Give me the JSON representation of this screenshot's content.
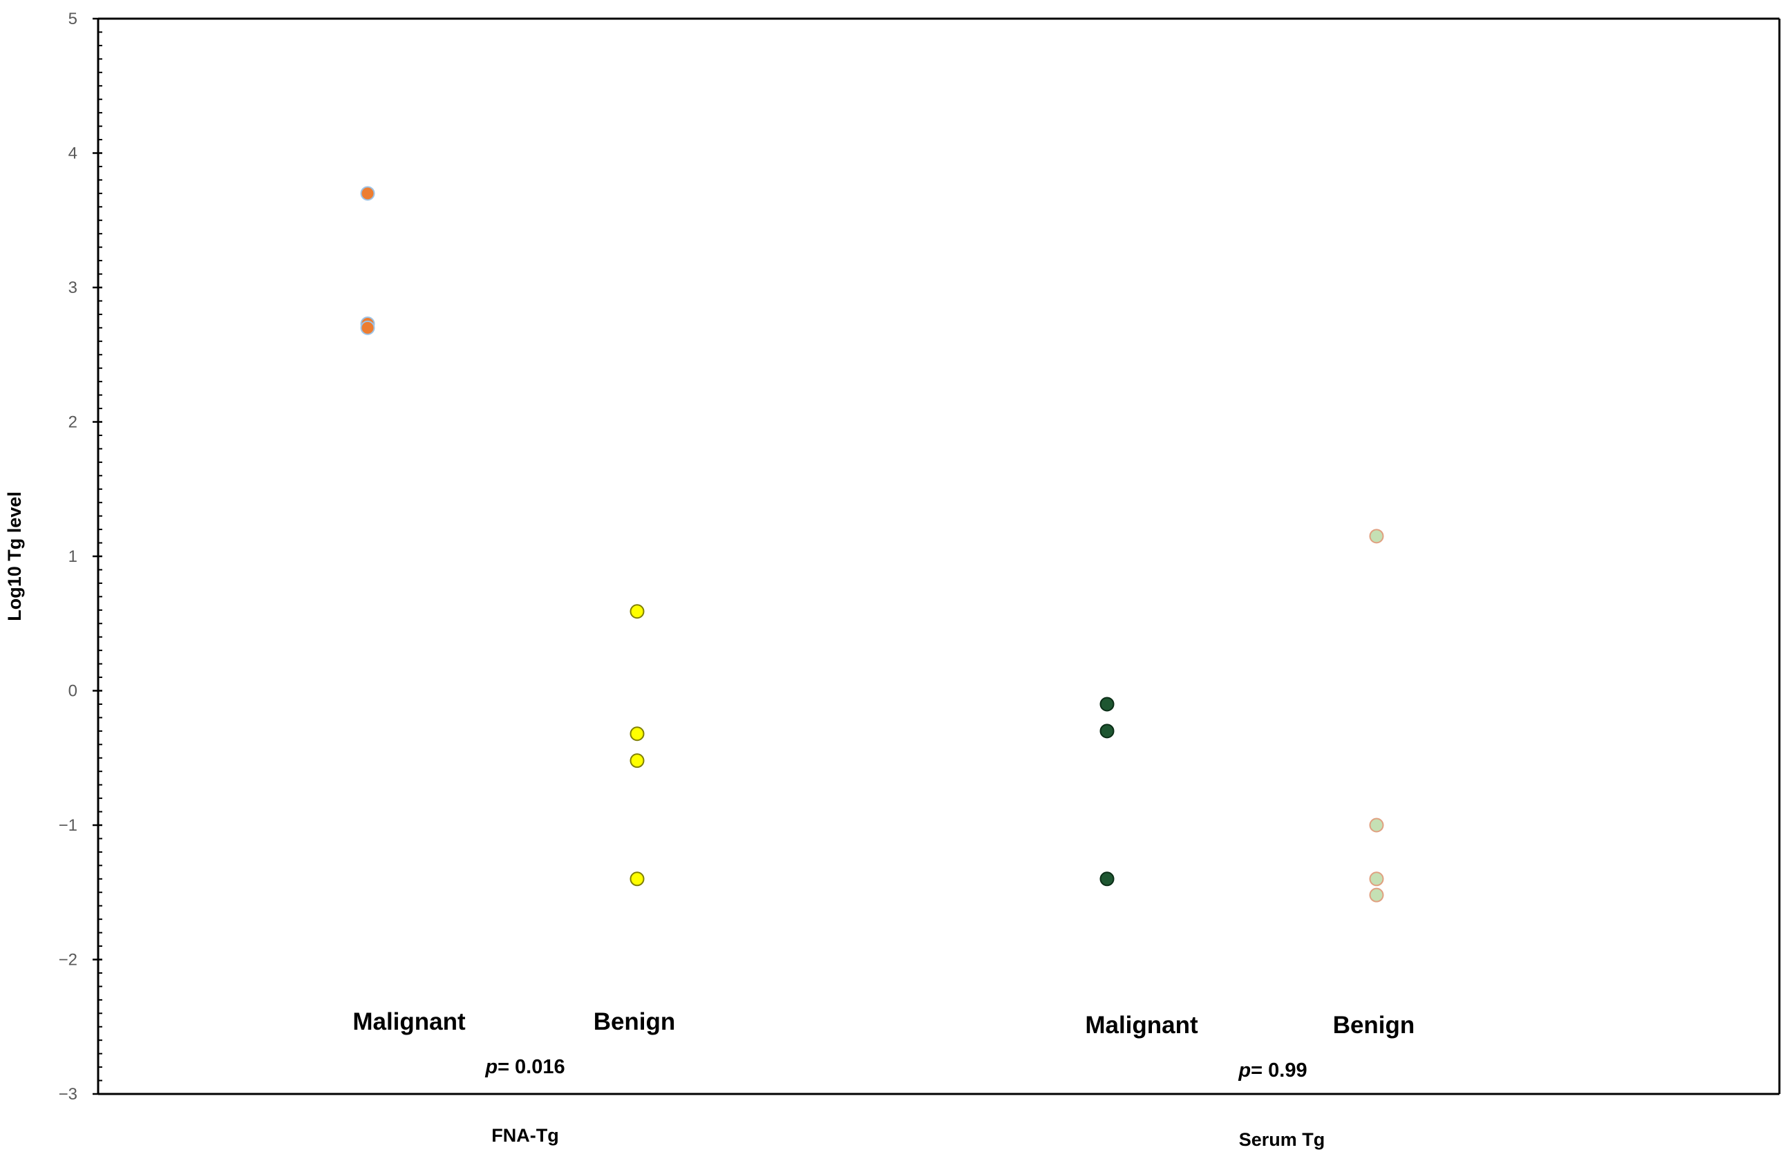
{
  "chart_data": {
    "type": "scatter",
    "title": "",
    "ylabel": "Log10 Tg level",
    "xlabel": "",
    "ylim": [
      -3,
      5
    ],
    "y_ticks": [
      "5",
      "4",
      "3",
      "2",
      "1",
      "0",
      "−1",
      "−2",
      "−3"
    ],
    "y_tick_values": [
      5,
      4,
      3,
      2,
      1,
      0,
      -1,
      -2,
      -3
    ],
    "grid": false,
    "legend": "none",
    "groups": [
      {
        "label": "FNA-Tg",
        "p_prefix": "p",
        "p_value": "= 0.016",
        "categories": [
          {
            "label": "Malignant",
            "color": "#ED7D31",
            "stroke": "#9DC3E6",
            "values": [
              3.7,
              2.73,
              2.7
            ]
          },
          {
            "label": "Benign",
            "color": "#FFFF00",
            "stroke": "#7F7F00",
            "values": [
              0.59,
              -0.32,
              -0.52,
              -1.4
            ]
          }
        ]
      },
      {
        "label": "Serum Tg",
        "p_prefix": "p",
        "p_value": "= 0.99",
        "categories": [
          {
            "label": "Malignant",
            "color": "#1E5631",
            "stroke": "#0B2E17",
            "values": [
              -0.1,
              -0.3,
              -1.4
            ]
          },
          {
            "label": "Benign",
            "color": "#C5E0B4",
            "stroke": "#E0A080",
            "values": [
              1.15,
              -1.0,
              -1.4,
              -1.52
            ]
          }
        ]
      }
    ]
  }
}
